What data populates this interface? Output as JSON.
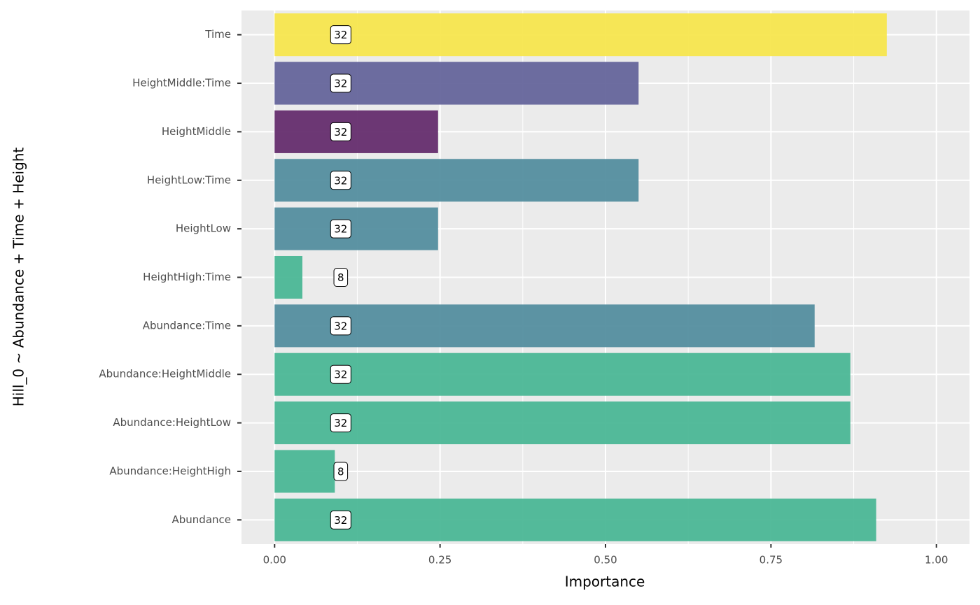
{
  "chart_data": {
    "type": "barh",
    "x_label": "Importance",
    "y_label": "Hill_0 ~ Abundance + Time + Height",
    "categories": [
      "Abundance",
      "Abundance:HeightHigh",
      "Abundance:HeightLow",
      "Abundance:HeightMiddle",
      "Abundance:Time",
      "HeightHigh:Time",
      "HeightLow",
      "HeightLow:Time",
      "HeightMiddle",
      "HeightMiddle:Time",
      "Time"
    ],
    "values": [
      0.909,
      0.091,
      0.87,
      0.87,
      0.816,
      0.042,
      0.247,
      0.55,
      0.247,
      0.55,
      0.925
    ],
    "counts": [
      32,
      8,
      32,
      32,
      32,
      8,
      32,
      32,
      32,
      32,
      32
    ],
    "colors": [
      "#4bb796",
      "#4bb796",
      "#4bb796",
      "#4bb796",
      "#548e9f",
      "#4bb796",
      "#548e9f",
      "#548e9f",
      "#652d6e",
      "#65659b",
      "#f7e64e"
    ],
    "xlim": [
      -0.05,
      1.05
    ],
    "xticks": [
      {
        "value": 0,
        "label": "0.00"
      },
      {
        "value": 0.25,
        "label": "0.25"
      },
      {
        "value": 0.5,
        "label": "0.50"
      },
      {
        "value": 0.75,
        "label": "0.75"
      },
      {
        "value": 1,
        "label": "1.00"
      }
    ],
    "minor_xticks": [
      0.125,
      0.375,
      0.625,
      0.875
    ],
    "grid": true
  }
}
